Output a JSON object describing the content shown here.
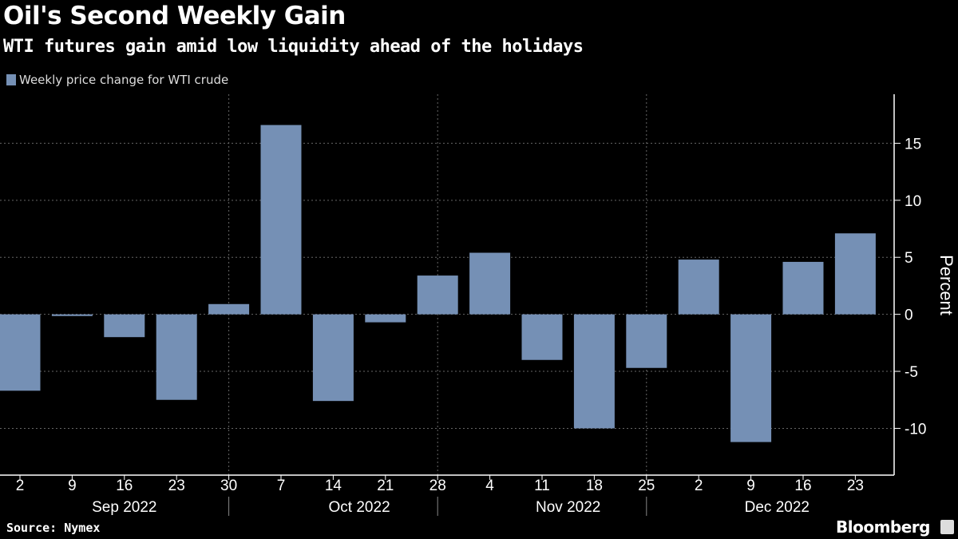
{
  "title": "Oil's Second Weekly Gain",
  "subtitle": "WTI futures gain amid low liquidity ahead of the holidays",
  "source": "Source: Nymex",
  "brand": "Bloomberg",
  "chart_data": {
    "type": "bar",
    "categories": [
      "2",
      "9",
      "16",
      "23",
      "30",
      "7",
      "14",
      "21",
      "28",
      "4",
      "11",
      "18",
      "25",
      "2",
      "9",
      "16",
      "23"
    ],
    "months": [
      {
        "label": "Sep 2022",
        "weeks": [
          "2",
          "9",
          "16",
          "23",
          "30"
        ]
      },
      {
        "label": "Oct 2022",
        "weeks": [
          "7",
          "14",
          "21",
          "28"
        ]
      },
      {
        "label": "Nov 2022",
        "weeks": [
          "4",
          "11",
          "18",
          "25"
        ]
      },
      {
        "label": "Dec 2022",
        "weeks": [
          "2",
          "9",
          "16",
          "23"
        ]
      }
    ],
    "series": [
      {
        "name": "Weekly price change for WTI crude",
        "values": [
          -6.7,
          -0.15,
          -2.0,
          -7.5,
          0.9,
          16.6,
          -7.6,
          -0.7,
          3.4,
          5.4,
          -4.0,
          -10.0,
          -4.7,
          4.8,
          -11.2,
          4.6,
          7.1
        ],
        "color": "#7590b5"
      }
    ],
    "ylabel": "Percent",
    "yticks": [
      -10,
      -5,
      0,
      5,
      10,
      15
    ],
    "ylim": [
      -14.1,
      19.3
    ],
    "yaxis_position": "right",
    "grid": true,
    "legend": "top-left"
  }
}
